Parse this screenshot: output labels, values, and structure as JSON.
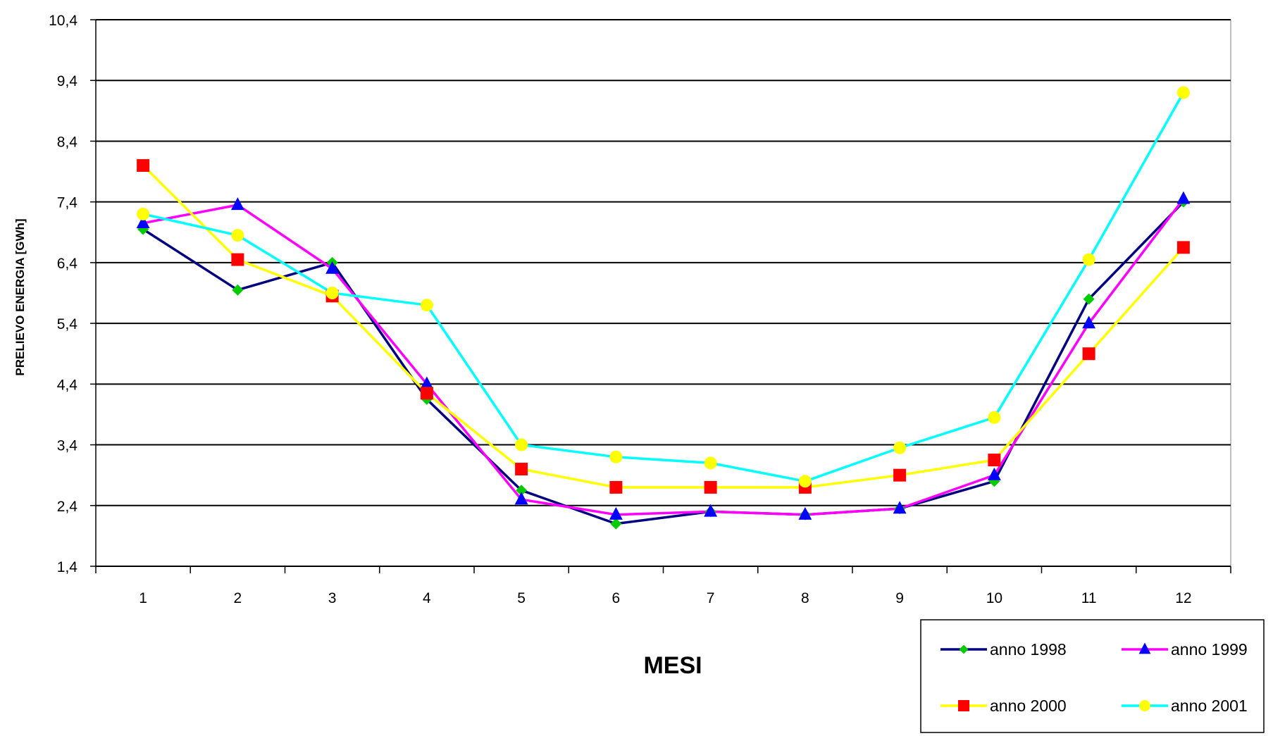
{
  "chart_data": {
    "type": "line",
    "title": "",
    "xlabel": "MESI",
    "ylabel": "PRELIEVO ENERGIA [GWh]",
    "ylim": [
      1.4,
      10.4
    ],
    "yticks": [
      "1,4",
      "2,4",
      "3,4",
      "4,4",
      "5,4",
      "6,4",
      "7,4",
      "8,4",
      "9,4",
      "10,4"
    ],
    "ytick_values": [
      1.4,
      2.4,
      3.4,
      4.4,
      5.4,
      6.4,
      7.4,
      8.4,
      9.4,
      10.4
    ],
    "categories": [
      "1",
      "2",
      "3",
      "4",
      "5",
      "6",
      "7",
      "8",
      "9",
      "10",
      "11",
      "12"
    ],
    "grid": "horizontal",
    "legend_position": "bottom-right",
    "series": [
      {
        "name": "anno 1998",
        "color": "#000080",
        "marker": "diamond",
        "marker_color": "#00CC00",
        "values": [
          6.95,
          5.95,
          6.4,
          4.15,
          2.65,
          2.1,
          2.3,
          2.25,
          2.35,
          2.8,
          5.8,
          7.4
        ]
      },
      {
        "name": "anno 1999",
        "color": "#FF00FF",
        "marker": "triangle",
        "marker_color": "#0000FF",
        "values": [
          7.05,
          7.35,
          6.3,
          4.4,
          2.5,
          2.25,
          2.3,
          2.25,
          2.35,
          2.9,
          5.4,
          7.45
        ]
      },
      {
        "name": "anno 2000",
        "color": "#FFFF00",
        "marker": "square",
        "marker_color": "#FF0000",
        "values": [
          8.0,
          6.45,
          5.85,
          4.25,
          3.0,
          2.7,
          2.7,
          2.7,
          2.9,
          3.15,
          4.9,
          6.65
        ]
      },
      {
        "name": "anno 2001",
        "color": "#00FFFF",
        "marker": "circle",
        "marker_color": "#FFFF00",
        "values": [
          7.2,
          6.85,
          5.9,
          5.7,
          3.4,
          3.2,
          3.1,
          2.8,
          3.35,
          3.85,
          6.45,
          9.2
        ]
      }
    ]
  }
}
